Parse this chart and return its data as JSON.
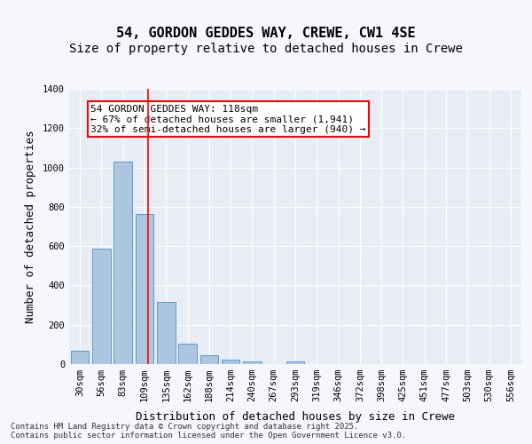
{
  "title_line1": "54, GORDON GEDDES WAY, CREWE, CW1 4SE",
  "title_line2": "Size of property relative to detached houses in Crewe",
  "xlabel": "Distribution of detached houses by size in Crewe",
  "ylabel": "Number of detached properties",
  "categories": [
    "30sqm",
    "56sqm",
    "83sqm",
    "109sqm",
    "135sqm",
    "162sqm",
    "188sqm",
    "214sqm",
    "240sqm",
    "267sqm",
    "293sqm",
    "319sqm",
    "346sqm",
    "372sqm",
    "398sqm",
    "425sqm",
    "451sqm",
    "477sqm",
    "503sqm",
    "530sqm",
    "556sqm"
  ],
  "values": [
    70,
    585,
    1030,
    765,
    315,
    105,
    45,
    22,
    12,
    0,
    12,
    0,
    0,
    0,
    0,
    0,
    0,
    0,
    0,
    0,
    0
  ],
  "bar_color": "#adc6e0",
  "bar_edge_color": "#5b9bd5",
  "vline_x": 3,
  "vline_color": "red",
  "annotation_text": "54 GORDON GEDDES WAY: 118sqm\n← 67% of detached houses are smaller (1,941)\n32% of semi-detached houses are larger (940) →",
  "annotation_box_color": "red",
  "ylim": [
    0,
    1400
  ],
  "yticks": [
    0,
    200,
    400,
    600,
    800,
    1000,
    1200,
    1400
  ],
  "background_color": "#e8edf5",
  "grid_color": "white",
  "footer_text": "Contains HM Land Registry data © Crown copyright and database right 2025.\nContains public sector information licensed under the Open Government Licence v3.0.",
  "title_fontsize": 11,
  "subtitle_fontsize": 10,
  "axis_label_fontsize": 9,
  "tick_fontsize": 7.5,
  "annotation_fontsize": 8
}
